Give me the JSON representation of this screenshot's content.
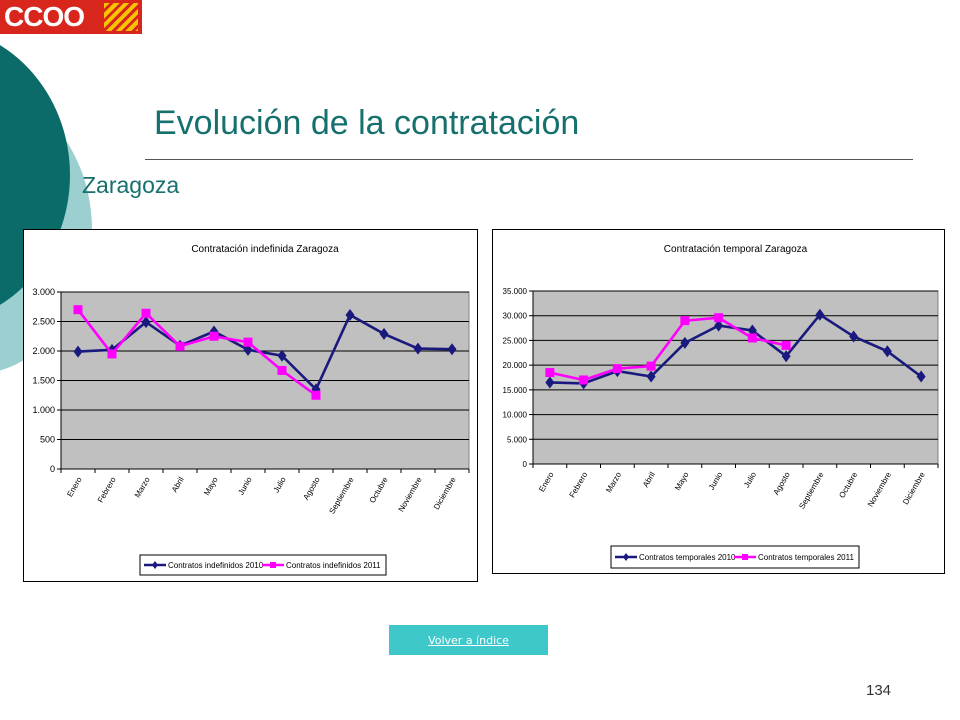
{
  "header": {
    "logo_text": "CCOO",
    "title": "Evolución de la contratación",
    "subtitle": "Zaragoza"
  },
  "colors": {
    "accent": "#16706d",
    "series_2010": "#1a1a7e",
    "series_2011": "#ff00ff",
    "plot_bg": "#c0c0c0",
    "button": "#3ec8c9"
  },
  "chart_data": [
    {
      "type": "line",
      "title": "Contratación indefinida Zaragoza",
      "categories": [
        "Enero",
        "Febrero",
        "Marzo",
        "Abril",
        "Mayo",
        "Junio",
        "Julio",
        "Agosto",
        "Septiembre",
        "Octubre",
        "Noviembre",
        "Diciembre"
      ],
      "category_labels": [
        "Enero",
        "Febrero",
        "Marzo",
        "Abril",
        "Mayo",
        "Junio",
        "Julio",
        "Agosto",
        "Septiembre",
        "Octubre",
        "Noviembre",
        "Diciembre"
      ],
      "ylim": [
        0,
        3000
      ],
      "yticks": [
        0,
        500,
        1000,
        1500,
        2000,
        2500,
        3000
      ],
      "ytick_labels": [
        "0",
        "500",
        "1.000",
        "1.500",
        "2.000",
        "2.500",
        "3.000"
      ],
      "grid": true,
      "legend": "bottom",
      "series": [
        {
          "name": "Contratos indefinidos 2010",
          "values": [
            1990,
            2020,
            2490,
            2090,
            2330,
            2020,
            1920,
            1350,
            2610,
            2290,
            2040,
            2030
          ]
        },
        {
          "name": "Contratos indefinidos 2011",
          "values": [
            2700,
            1950,
            2640,
            2080,
            2250,
            2150,
            1670,
            1250,
            null,
            null,
            null,
            null
          ]
        }
      ]
    },
    {
      "type": "line",
      "title": "Contratación temporal Zaragoza",
      "categories": [
        "Enero",
        "Febrero",
        "Marzo",
        "Abril",
        "Mayo",
        "Junio",
        "Julio",
        "Agosto",
        "Septiembre",
        "Octubre",
        "Noviembre",
        "Diciembre"
      ],
      "category_labels": [
        "Enero",
        "Febrero",
        "Marzo",
        "Abril",
        "Mayo",
        "Junio",
        "Julio",
        "Agosto",
        "Septiembre",
        "Octubre",
        "Noviembre",
        "Diciembre"
      ],
      "ylim": [
        0,
        35000
      ],
      "yticks": [
        0,
        5000,
        10000,
        15000,
        20000,
        25000,
        30000,
        35000
      ],
      "ytick_labels": [
        "0",
        "5.000",
        "10.000",
        "15.000",
        "20.000",
        "25.000",
        "30.000",
        "35.000"
      ],
      "grid": true,
      "legend": "bottom",
      "series": [
        {
          "name": "Contratos temporales 2010",
          "values": [
            16500,
            16300,
            18800,
            17700,
            24500,
            28000,
            27000,
            21800,
            30200,
            25800,
            22800,
            17700
          ]
        },
        {
          "name": "Contratos temporales 2011",
          "values": [
            18500,
            17000,
            19300,
            19800,
            29000,
            29600,
            25500,
            24000,
            null,
            null,
            null,
            null
          ]
        }
      ]
    }
  ],
  "footer": {
    "back_link": "Volver a índice",
    "page_number": "134"
  }
}
